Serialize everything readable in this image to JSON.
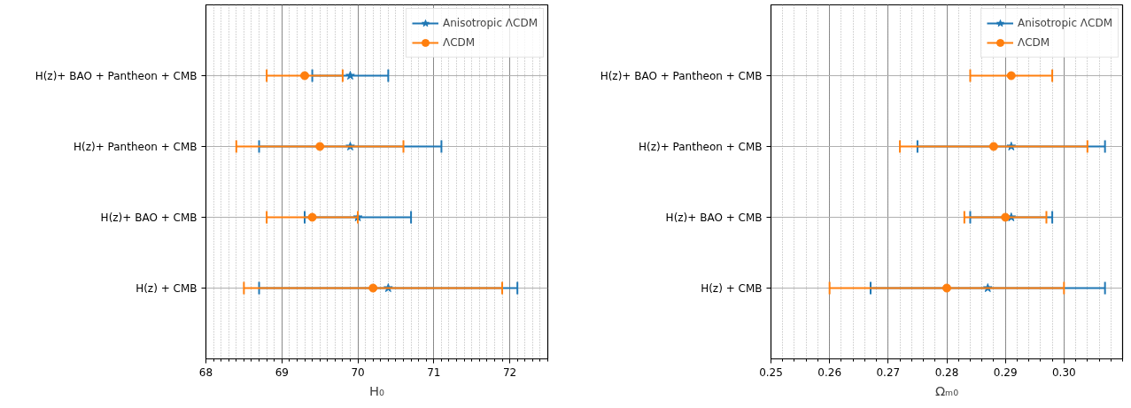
{
  "chart_data": [
    {
      "type": "scatter",
      "orientation": "horizontal",
      "xlabel": "H₀",
      "categories": [
        "H(z)+ BAO + Pantheon + CMB",
        "H(z)+ Pantheon + CMB",
        "H(z)+ BAO + CMB",
        "H(z) + CMB"
      ],
      "xlim": [
        68,
        72.5
      ],
      "xticks": [
        68,
        69,
        70,
        71,
        72
      ],
      "grid": true,
      "legend": "top right",
      "series": [
        {
          "name": "Anisotropic ΛCDM",
          "color": "#1f77b4",
          "marker": "star",
          "values": [
            69.9,
            69.9,
            70.0,
            70.4
          ],
          "errors": [
            0.5,
            1.2,
            0.7,
            1.7
          ]
        },
        {
          "name": "ΛCDM",
          "color": "#ff7f0e",
          "marker": "circle",
          "values": [
            69.3,
            69.5,
            69.4,
            70.2
          ],
          "errors": [
            0.5,
            1.1,
            0.6,
            1.7
          ]
        }
      ]
    },
    {
      "type": "scatter",
      "orientation": "horizontal",
      "xlabel": "Ωₘ₀",
      "categories": [
        "H(z)+ BAO + Pantheon + CMB",
        "H(z)+ Pantheon + CMB",
        "H(z)+ BAO + CMB",
        "H(z) + CMB"
      ],
      "xlim": [
        0.25,
        0.31
      ],
      "xticks": [
        0.25,
        0.26,
        0.27,
        0.28,
        0.29,
        {
          "value": 0.3,
          "label": "0.30"
        }
      ],
      "grid": true,
      "legend": "top right",
      "series": [
        {
          "name": "Anisotropic ΛCDM",
          "color": "#1f77b4",
          "marker": "star",
          "values": [
            null,
            0.291,
            0.291,
            0.287
          ],
          "errors": [
            null,
            0.016,
            0.007,
            0.02
          ]
        },
        {
          "name": "ΛCDM",
          "color": "#ff7f0e",
          "marker": "circle",
          "values": [
            0.291,
            0.288,
            0.29,
            0.28
          ],
          "errors": [
            0.007,
            0.016,
            0.007,
            0.02
          ]
        }
      ]
    }
  ]
}
